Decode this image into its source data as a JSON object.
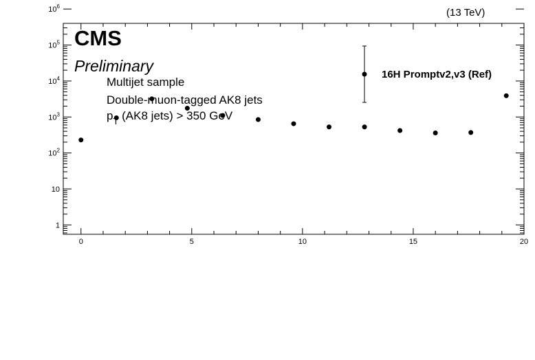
{
  "chart_data": {
    "type": "scatter",
    "energy_label": "(13 TeV)",
    "experiment": "CMS",
    "status": "Preliminary",
    "annotations": [
      "Multijet sample",
      "Double-muon-tagged AK8 jets"
    ],
    "pt_cut": {
      "symbol": "p",
      "subscript": "T",
      "rest": " (AK8 jets) > 350 GeV"
    },
    "xlim": [
      -0.8,
      20
    ],
    "ylim": [
      0.55,
      400000
    ],
    "yscale": "log",
    "x_ticks": [
      {
        "value": 0,
        "label": "0"
      },
      {
        "value": 5,
        "label": "5"
      },
      {
        "value": 10,
        "label": "10"
      },
      {
        "value": 15,
        "label": "15"
      },
      {
        "value": 20,
        "label": "20"
      }
    ],
    "y_ticks": [
      {
        "value": 1,
        "base": "1",
        "exp": ""
      },
      {
        "value": 10,
        "base": "10",
        "exp": ""
      },
      {
        "value": 100,
        "base": "10",
        "exp": "2"
      },
      {
        "value": 1000,
        "base": "10",
        "exp": "3"
      },
      {
        "value": 10000,
        "base": "10",
        "exp": "4"
      },
      {
        "value": 100000,
        "base": "10",
        "exp": "5"
      },
      {
        "value": 1000000,
        "base": "10",
        "exp": "6"
      }
    ],
    "legend_position": "top-right",
    "series": [
      {
        "name": "16H  Promptv2,v3 (Ref)",
        "x": [
          0,
          1.6,
          3.2,
          4.8,
          6.4,
          8.0,
          9.6,
          11.2,
          12.8,
          14.4,
          16.0,
          17.6,
          19.2
        ],
        "y": [
          230,
          950,
          3200,
          1750,
          1100,
          850,
          650,
          530,
          530,
          420,
          360,
          370,
          3900
        ]
      }
    ]
  }
}
